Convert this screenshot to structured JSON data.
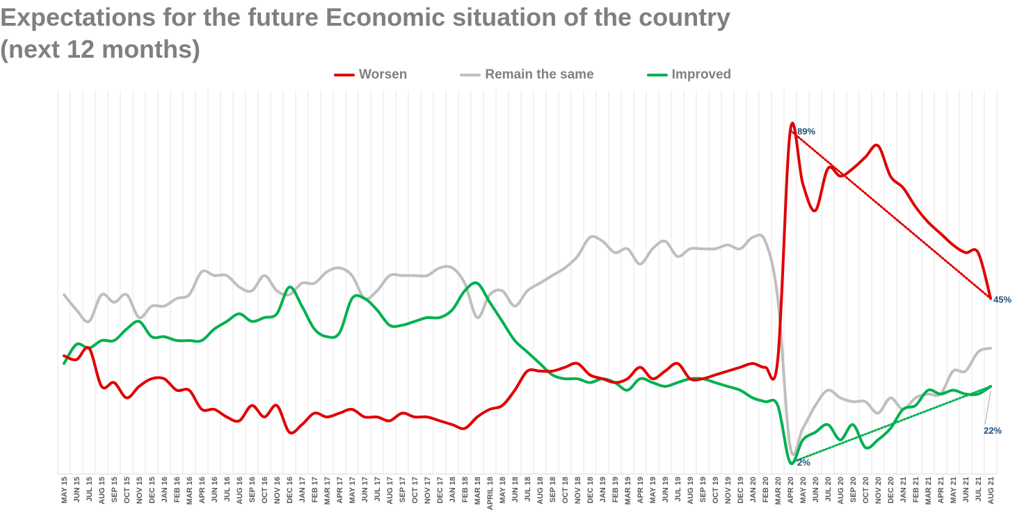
{
  "chart_data": {
    "type": "line",
    "title_lines": [
      "Expectations for the future Economic situation of the country",
      "(next 12 months)"
    ],
    "legend_position": "top-center",
    "grid": {
      "vertical": true,
      "horizontal": false
    },
    "ylim": [
      0,
      100
    ],
    "x": [
      "MAY 15",
      "JUN 15",
      "JUL 15",
      "AUG 15",
      "SEP 15",
      "OCT 15",
      "NOV 15",
      "DEC 15",
      "JAN 16",
      "FEB 16",
      "MAR 16",
      "APR 16",
      "JUN 16",
      "JUL 16",
      "AUG 16",
      "SEP 16",
      "OCT 16",
      "NOV 16",
      "DEC 16",
      "JAN 17",
      "FEB 17",
      "MAR 17",
      "APR 17",
      "MAY 17",
      "JUN 17",
      "JUL 17",
      "AUG 17",
      "SEP 17",
      "OCT 17",
      "NOV 17",
      "DEC 17",
      "JAN 18",
      "FEB 18",
      "MAR 18",
      "APRIL 18",
      "MAY 18",
      "JUN 18",
      "JUL 18",
      "AUG 18",
      "SEP 18",
      "OCT 18",
      "NOV 18",
      "DEC 18",
      "JAN 19",
      "FEB 19",
      "MAR 19",
      "APR 19",
      "MAY 19",
      "JUN 19",
      "JUL 19",
      "AUG 19",
      "SEP 19",
      "OCT 19",
      "NOV 19",
      "DEC 19",
      "JAN 20",
      "FEB 20",
      "MAR 20",
      "APR 20",
      "MAY 20",
      "JUN 20",
      "JUL 20",
      "AUG 20",
      "SEP 20",
      "OCT 20",
      "NOV 20",
      "DEC 20",
      "JAN 21",
      "FEB 21",
      "MAR 21",
      "APR 21",
      "MAY 21",
      "JUN 21",
      "JUL 21",
      "AUG 21"
    ],
    "series": [
      {
        "name": "Worsen",
        "color": "#e00000",
        "values": [
          30,
          29,
          32,
          22,
          23,
          19,
          22,
          24,
          24,
          21,
          21,
          16,
          16,
          14,
          13,
          17,
          14,
          17,
          10,
          12,
          15,
          14,
          15,
          16,
          14,
          14,
          13,
          15,
          14,
          14,
          13,
          12,
          11,
          14,
          16,
          17,
          21,
          26,
          26,
          26,
          27,
          28,
          25,
          24,
          23,
          24,
          27,
          24,
          26,
          28,
          24,
          24,
          25,
          26,
          27,
          28,
          27,
          29,
          89,
          75,
          68,
          79,
          77,
          79,
          82,
          85,
          77,
          74,
          69,
          65,
          62,
          59,
          57,
          57,
          45
        ],
        "labels": [
          {
            "index": 58,
            "text": "89%"
          },
          {
            "index": 74,
            "text": "45%"
          }
        ],
        "trendline": {
          "from_index": 58,
          "to_index": 74
        }
      },
      {
        "name": "Remain the same",
        "color": "#bfbfbf",
        "values": [
          46,
          42,
          39,
          46,
          44,
          46,
          40,
          43,
          43,
          45,
          46,
          52,
          51,
          51,
          48,
          47,
          51,
          47,
          46,
          49,
          49,
          52,
          53,
          51,
          45,
          47,
          51,
          51,
          51,
          51,
          53,
          53,
          49,
          40,
          46,
          47,
          43,
          47,
          49,
          51,
          53,
          56,
          61,
          60,
          57,
          58,
          54,
          58,
          60,
          56,
          58,
          58,
          58,
          59,
          58,
          61,
          60,
          45,
          6,
          11,
          17,
          21,
          19,
          18,
          18,
          15,
          19,
          16,
          19,
          20,
          20,
          26,
          26,
          31,
          32
        ],
        "labels": []
      },
      {
        "name": "Improved",
        "color": "#00b050",
        "values": [
          28,
          33,
          32,
          34,
          34,
          37,
          39,
          35,
          35,
          34,
          34,
          34,
          37,
          39,
          41,
          39,
          40,
          41,
          48,
          43,
          37,
          35,
          36,
          45,
          45,
          42,
          38,
          38,
          39,
          40,
          40,
          42,
          47,
          49,
          44,
          39,
          34,
          31,
          28,
          25,
          24,
          24,
          23,
          24,
          23,
          21,
          24,
          23,
          22,
          23,
          24,
          24,
          23,
          22,
          21,
          19,
          18,
          17,
          2,
          8,
          10,
          12,
          8,
          12,
          6,
          8,
          11,
          16,
          17,
          21,
          20,
          21,
          20,
          20,
          22
        ],
        "labels": [
          {
            "index": 58,
            "text": "2%"
          },
          {
            "index": 74,
            "text": "22%"
          }
        ],
        "trendline": {
          "from_index": 58,
          "to_index": 74
        }
      }
    ]
  }
}
